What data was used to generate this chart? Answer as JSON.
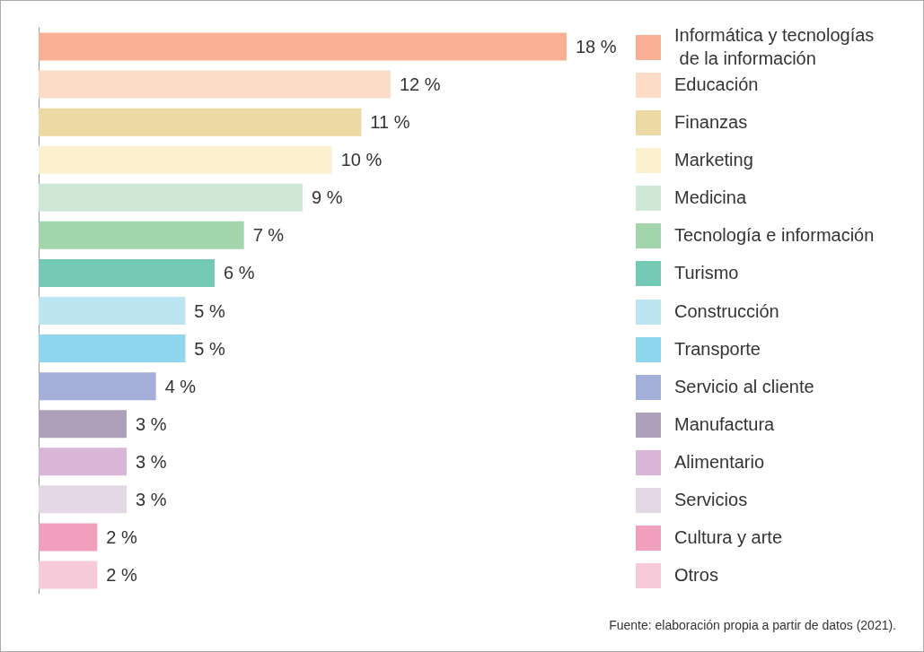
{
  "chart_data": {
    "type": "bar",
    "orientation": "horizontal",
    "categories": [
      "Informática y tecnologías de la información",
      "Educación",
      "Finanzas",
      "Marketing",
      "Medicina",
      "Tecnología e información",
      "Turismo",
      "Construcción",
      "Transporte",
      "Servicio al cliente",
      "Manufactura",
      "Alimentario",
      "Servicios",
      "Cultura y arte",
      "Otros"
    ],
    "values": [
      18,
      12,
      11,
      10,
      9,
      7,
      6,
      5,
      5,
      4,
      3,
      3,
      3,
      2,
      2
    ],
    "value_labels": [
      "18 %",
      "12 %",
      "11 %",
      "10 %",
      "9 %",
      "7 %",
      "6 %",
      "5 %",
      "5 %",
      "4 %",
      "3 %",
      "3 %",
      "3 %",
      "2 %",
      "2 %"
    ],
    "colors": [
      "#f9af94",
      "#fddcc7",
      "#edd9a3",
      "#fcf1cf",
      "#cfe7d5",
      "#a3d5ad",
      "#74c9b5",
      "#bde4f1",
      "#8dd6ee",
      "#a3aed9",
      "#ae9fba",
      "#d9b6d8",
      "#e3d7e6",
      "#f0a0bd",
      "#f6cad9"
    ],
    "annotations": [
      "Fuente: elaboración propia a partir de datos (2021)."
    ]
  }
}
